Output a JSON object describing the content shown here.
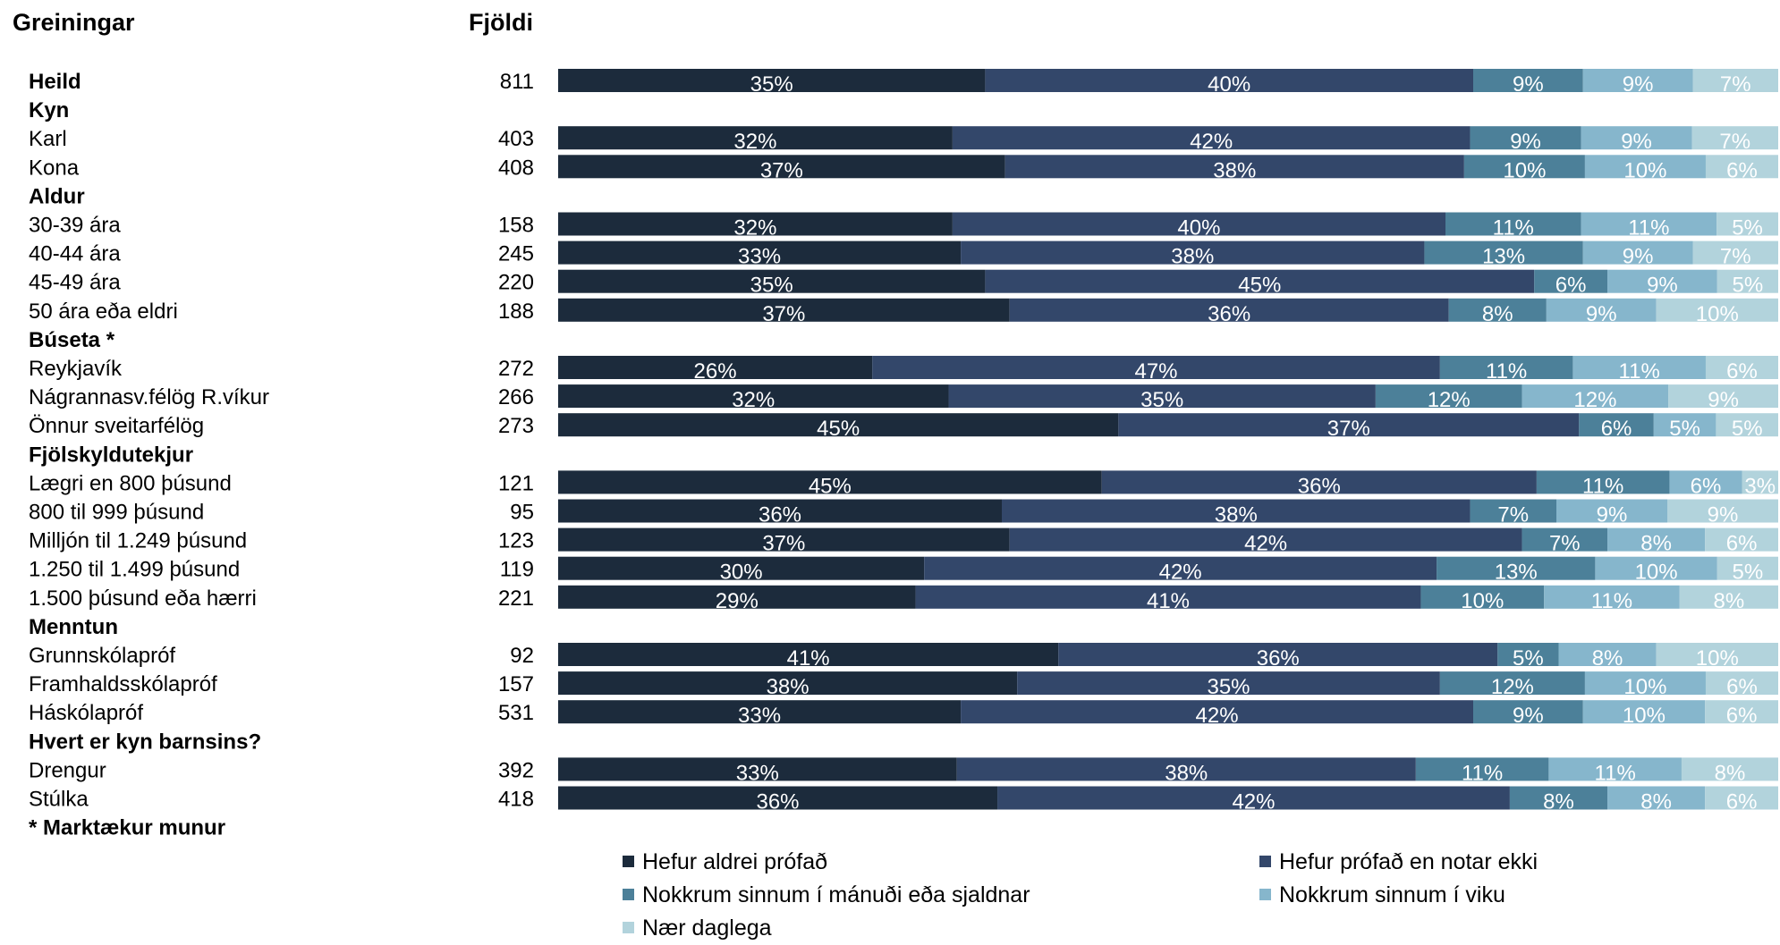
{
  "header": {
    "breakdowns_label": "Greiningar",
    "count_label": "Fjöldi"
  },
  "chart_data": {
    "type": "bar",
    "orientation": "horizontal",
    "stacked": true,
    "percent_stacked": true,
    "legend_position": "bottom",
    "series": [
      {
        "name": "Hefur aldrei prófað",
        "color": "#1c2b3c"
      },
      {
        "name": "Hefur prófað en notar ekki",
        "color": "#33476a"
      },
      {
        "name": "Nokkrum sinnum í mánuði eða sjaldnar",
        "color": "#4c8099"
      },
      {
        "name": "Nokkrum sinnum í viku",
        "color": "#86b6cc"
      },
      {
        "name": "Nær daglega",
        "color": "#b2d3dc"
      }
    ],
    "rows": [
      {
        "label": "Heild",
        "bold": true,
        "count": "811",
        "values": [
          35,
          40,
          9,
          9,
          7
        ]
      },
      {
        "label": "Kyn",
        "bold": true,
        "group": true
      },
      {
        "label": "Karl",
        "count": "403",
        "values": [
          32,
          42,
          9,
          9,
          7
        ]
      },
      {
        "label": "Kona",
        "count": "408",
        "values": [
          37,
          38,
          10,
          10,
          6
        ]
      },
      {
        "label": "Aldur",
        "bold": true,
        "group": true
      },
      {
        "label": "30-39 ára",
        "count": "158",
        "values": [
          32,
          40,
          11,
          11,
          5
        ]
      },
      {
        "label": "40-44 ára",
        "count": "245",
        "values": [
          33,
          38,
          13,
          9,
          7
        ]
      },
      {
        "label": "45-49 ára",
        "count": "220",
        "values": [
          35,
          45,
          6,
          9,
          5
        ]
      },
      {
        "label": "50 ára eða eldri",
        "count": "188",
        "values": [
          37,
          36,
          8,
          9,
          10
        ]
      },
      {
        "label": "Búseta *",
        "bold": true,
        "group": true
      },
      {
        "label": "Reykjavík",
        "count": "272",
        "values": [
          26,
          47,
          11,
          11,
          6
        ]
      },
      {
        "label": "Nágrannasv.félög R.víkur",
        "count": "266",
        "values": [
          32,
          35,
          12,
          12,
          9
        ]
      },
      {
        "label": "Önnur sveitarfélög",
        "count": "273",
        "values": [
          45,
          37,
          6,
          5,
          5
        ]
      },
      {
        "label": "Fjölskyldutekjur",
        "bold": true,
        "group": true
      },
      {
        "label": "Lægri en 800 þúsund",
        "count": "121",
        "values": [
          45,
          36,
          11,
          6,
          3
        ]
      },
      {
        "label": "800 til 999 þúsund",
        "count": "95",
        "values": [
          36,
          38,
          7,
          9,
          9
        ]
      },
      {
        "label": "Milljón til 1.249 þúsund",
        "count": "123",
        "values": [
          37,
          42,
          7,
          8,
          6
        ]
      },
      {
        "label": "1.250 til 1.499 þúsund",
        "count": "119",
        "values": [
          30,
          42,
          13,
          10,
          5
        ]
      },
      {
        "label": "1.500 þúsund eða hærri",
        "count": "221",
        "values": [
          29,
          41,
          10,
          11,
          8
        ]
      },
      {
        "label": "Menntun",
        "bold": true,
        "group": true
      },
      {
        "label": "Grunnskólapróf",
        "count": "92",
        "values": [
          41,
          36,
          5,
          8,
          10
        ]
      },
      {
        "label": "Framhaldsskólapróf",
        "count": "157",
        "values": [
          38,
          35,
          12,
          10,
          6
        ]
      },
      {
        "label": "Háskólapróf",
        "count": "531",
        "values": [
          33,
          42,
          9,
          10,
          6
        ]
      },
      {
        "label": "Hvert er kyn barnsins?",
        "bold": true,
        "group": true
      },
      {
        "label": "Drengur",
        "count": "392",
        "values": [
          33,
          38,
          11,
          11,
          8
        ]
      },
      {
        "label": "Stúlka",
        "count": "418",
        "values": [
          36,
          42,
          8,
          8,
          6
        ]
      },
      {
        "label": "* Marktækur munur",
        "bold": true,
        "group": true
      }
    ]
  }
}
